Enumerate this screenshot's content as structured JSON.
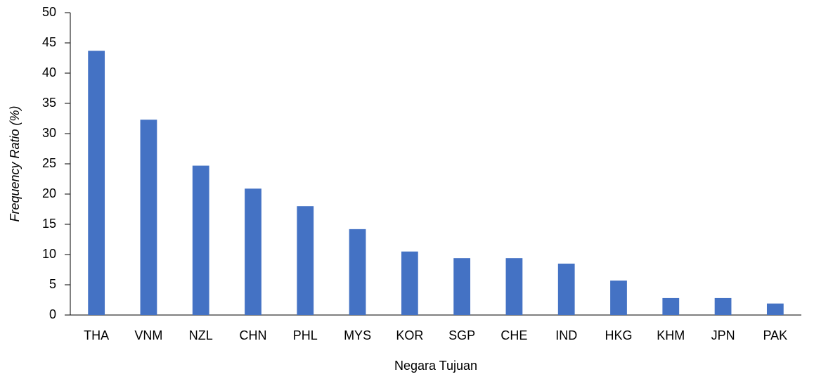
{
  "chart_data": {
    "type": "bar",
    "xlabel": "Negara Tujuan",
    "ylabel": "Frequency Ratio (%)",
    "categories": [
      "THA",
      "VNM",
      "NZL",
      "CHN",
      "PHL",
      "MYS",
      "KOR",
      "SGP",
      "CHE",
      "IND",
      "HKG",
      "KHM",
      "JPN",
      "PAK"
    ],
    "values": [
      43.7,
      32.3,
      24.7,
      20.9,
      18.0,
      14.2,
      10.5,
      9.4,
      9.4,
      8.5,
      5.7,
      2.8,
      2.8,
      1.9
    ],
    "color": "#4472c4",
    "ylim": [
      0,
      50
    ],
    "yticks": [
      0,
      5,
      10,
      15,
      20,
      25,
      30,
      35,
      40,
      45,
      50
    ],
    "grid": false
  }
}
